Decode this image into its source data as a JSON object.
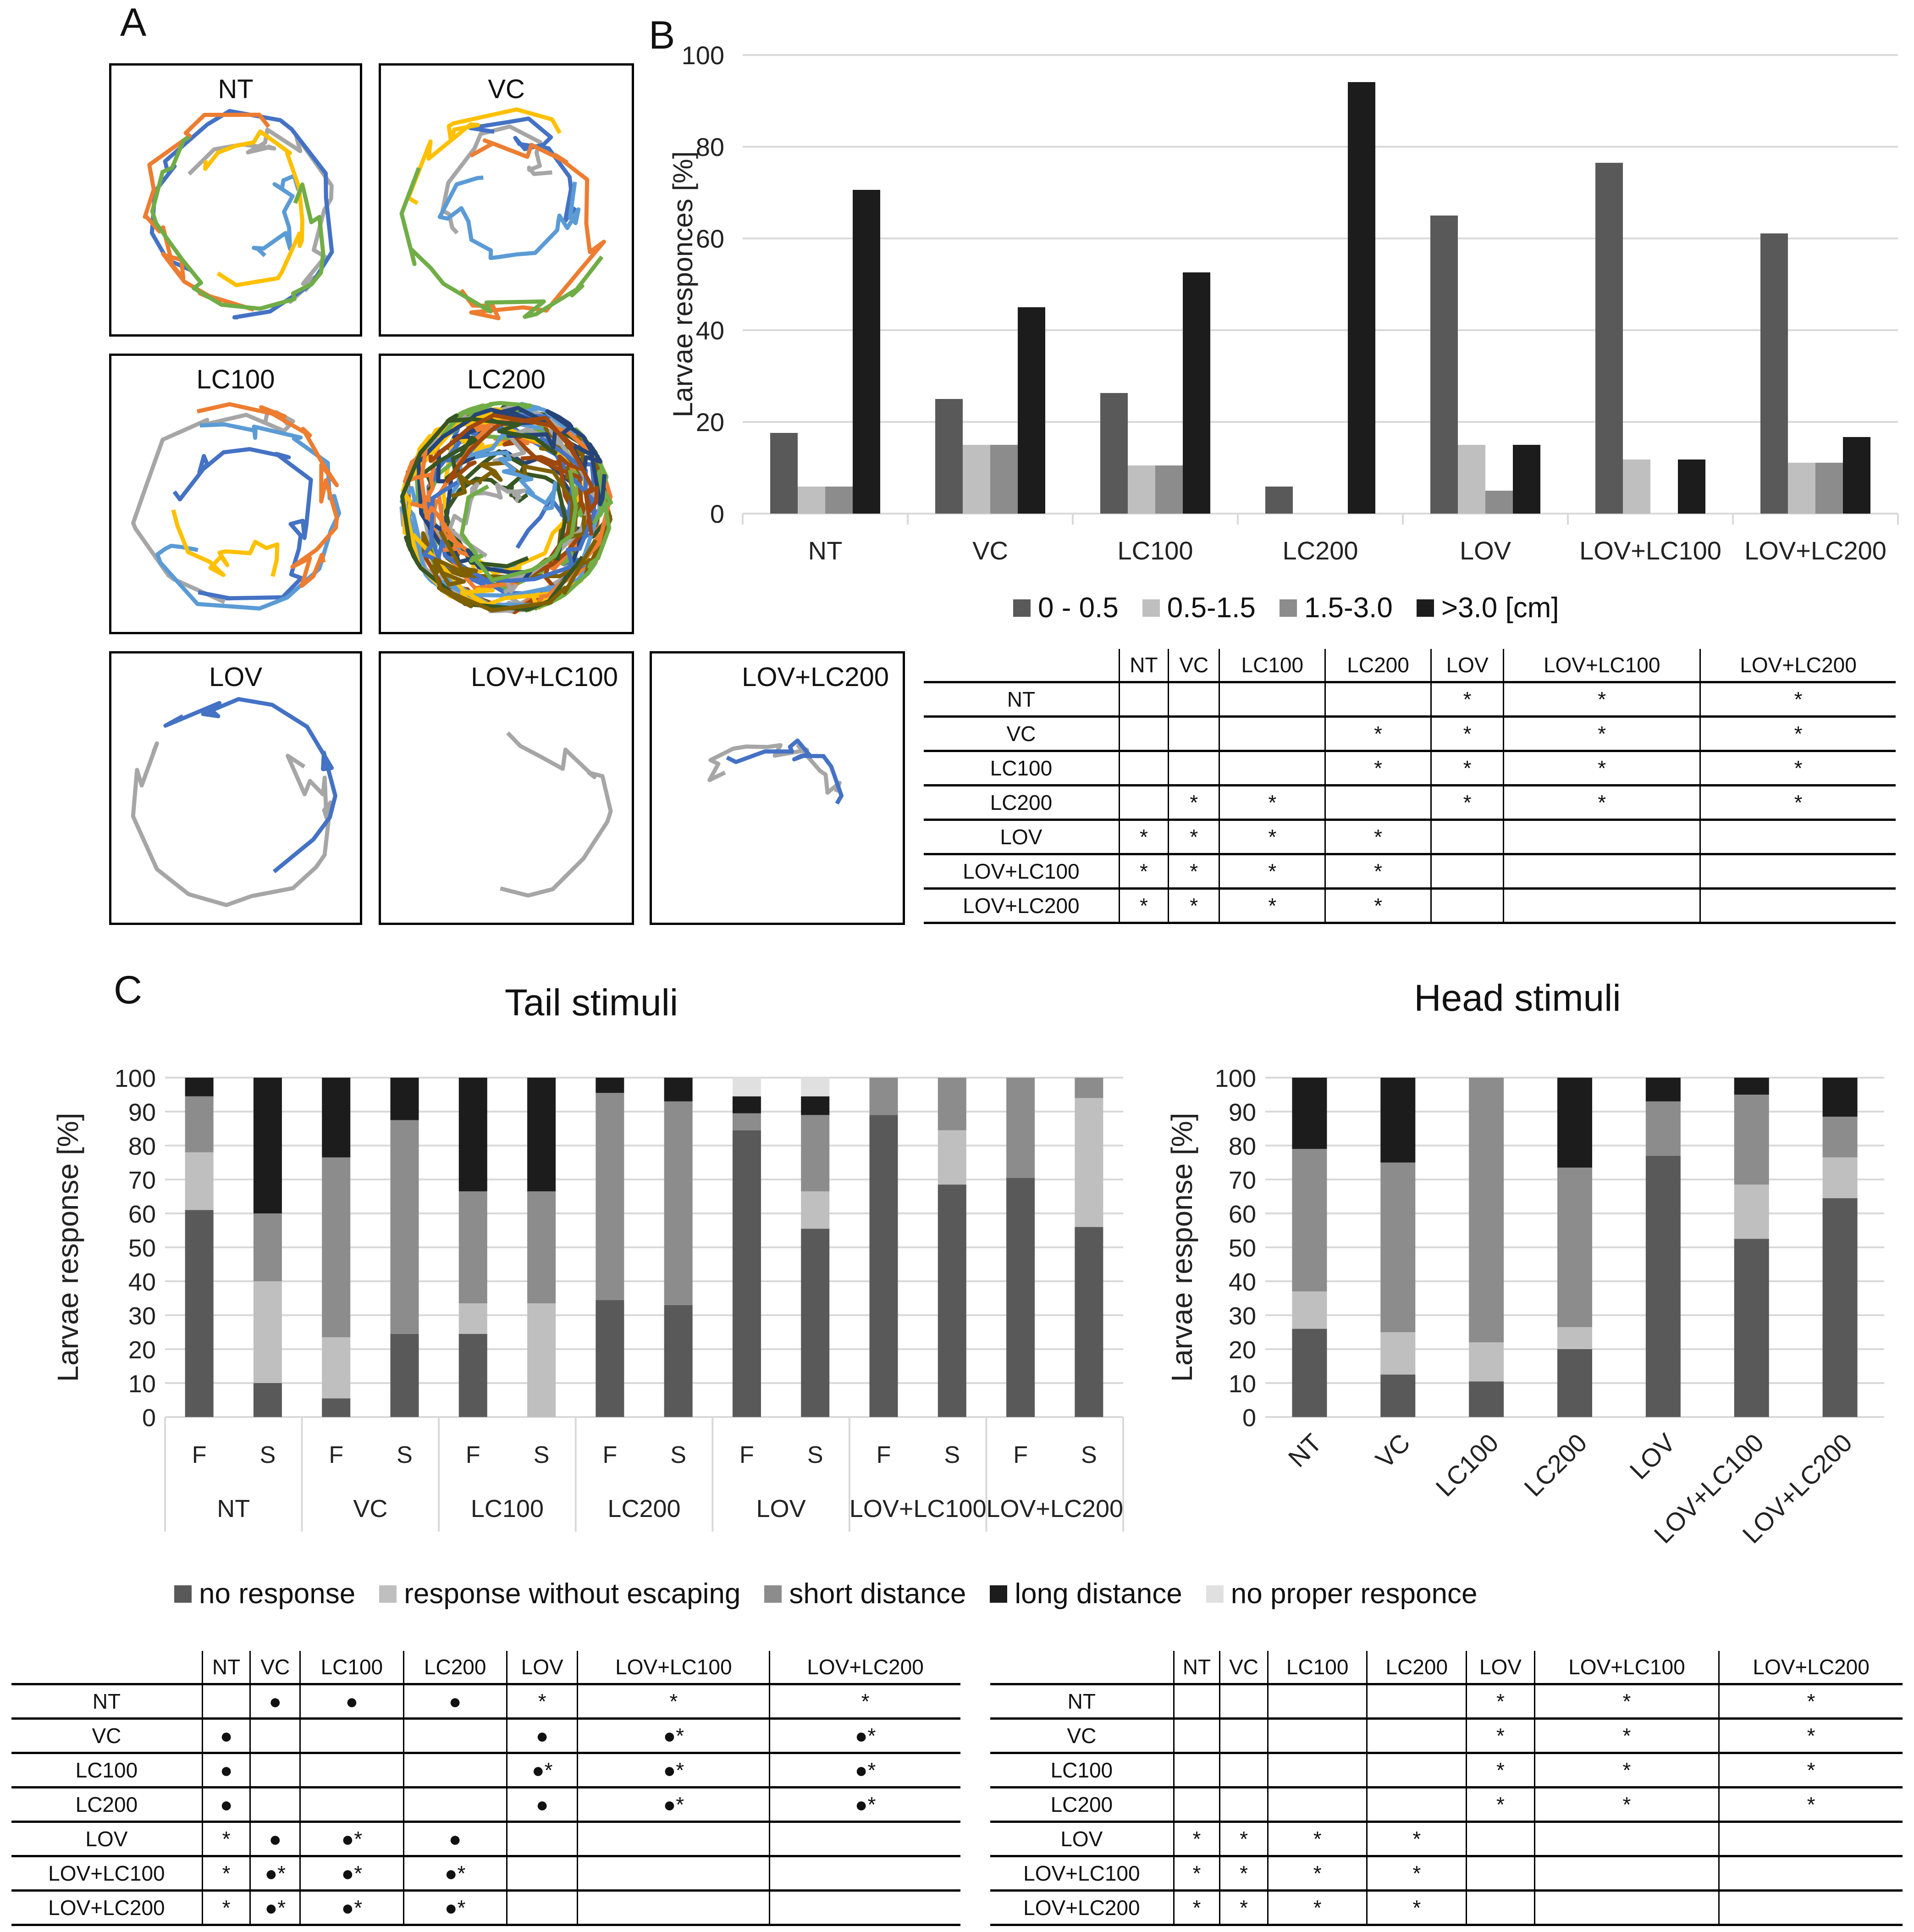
{
  "panels": {
    "a": "A",
    "b": "B",
    "c": "C"
  },
  "tracks": [
    {
      "label": "NT"
    },
    {
      "label": "VC"
    },
    {
      "label": "LC100"
    },
    {
      "label": "LC200"
    },
    {
      "label": "LOV"
    },
    {
      "label": "LOV+LC100"
    },
    {
      "label": "LOV+LC200"
    }
  ],
  "colors": {
    "dark": "#595959",
    "light": "#bfbfbf",
    "mid": "#8c8c8c",
    "black": "#1c1c1c",
    "pale": "#e0e0e0",
    "track_palette": [
      "#a6a6a6",
      "#4472c4",
      "#5b9bd5",
      "#ffc000",
      "#ed7d31",
      "#70ad47",
      "#264478",
      "#375623",
      "#9e480e",
      "#7f6000"
    ]
  },
  "chart_data": [
    {
      "type": "bar",
      "title": "",
      "xlabel": "",
      "ylabel": "Larvae responces [%]",
      "ylim": [
        0,
        100
      ],
      "yticks": [
        "0",
        "20",
        "40",
        "60",
        "80",
        "100"
      ],
      "categories": [
        "NT",
        "VC",
        "LC100",
        "LC200",
        "LOV",
        "LOV+LC100",
        "LOV+LC200"
      ],
      "series": [
        {
          "name": "0 - 0.5",
          "values": [
            17.6,
            25,
            26.3,
            5.9,
            65,
            76.5,
            61.1
          ]
        },
        {
          "name": "0.5-1.5",
          "values": [
            5.9,
            15,
            10.5,
            0,
            15,
            11.8,
            11.1
          ]
        },
        {
          "name": "1.5-3.0",
          "values": [
            5.9,
            15,
            10.5,
            0,
            5,
            0,
            11.1
          ]
        },
        {
          "name": ">3.0 [cm]",
          "values": [
            70.6,
            45,
            52.6,
            94.1,
            15,
            11.8,
            16.7
          ]
        }
      ],
      "grid": true,
      "legend": "bottom"
    },
    {
      "type": "bar",
      "stacked": true,
      "title": "Tail stimuli",
      "xlabel": "",
      "ylabel": "Larvae response [%]",
      "ylim": [
        0,
        100
      ],
      "yticks": [
        "0",
        "10",
        "20",
        "30",
        "40",
        "50",
        "60",
        "70",
        "80",
        "90",
        "100"
      ],
      "groups": [
        "NT",
        "VC",
        "LC100",
        "LC200",
        "LOV",
        "LOV+LC100",
        "LOV+LC200"
      ],
      "sub_categories": [
        "F",
        "S"
      ],
      "series": [
        {
          "name": "no response",
          "values": [
            61,
            10,
            5.5,
            24.5,
            24.5,
            0,
            34.5,
            33,
            84.5,
            55.5,
            89,
            68.5,
            70.5,
            56
          ]
        },
        {
          "name": "response without escaping",
          "values": [
            17,
            30,
            18,
            0,
            9,
            33.5,
            0,
            0,
            0,
            11,
            0,
            16,
            0,
            38
          ]
        },
        {
          "name": "short distance",
          "values": [
            16.5,
            20,
            53,
            63,
            33,
            33,
            61,
            60,
            5,
            22.5,
            11,
            15.5,
            29.5,
            6
          ]
        },
        {
          "name": "long distance",
          "values": [
            5.5,
            40,
            23.5,
            12.5,
            33.5,
            33.5,
            4.5,
            7,
            5,
            5.5,
            0,
            0,
            0,
            0
          ]
        },
        {
          "name": "no proper responce",
          "values": [
            0,
            0,
            0,
            0,
            0,
            0,
            0,
            0,
            5.5,
            5.5,
            0,
            0,
            0,
            0
          ]
        }
      ],
      "grid": true
    },
    {
      "type": "bar",
      "stacked": true,
      "title": "Head stimuli",
      "xlabel": "",
      "ylabel": "Larvae response [%]",
      "ylim": [
        0,
        100
      ],
      "yticks": [
        "0",
        "10",
        "20",
        "30",
        "40",
        "50",
        "60",
        "70",
        "80",
        "90",
        "100"
      ],
      "categories": [
        "NT",
        "VC",
        "LC100",
        "LC200",
        "LOV",
        "LOV+LC100",
        "LOV+LC200"
      ],
      "series": [
        {
          "name": "no response",
          "values": [
            26,
            12.5,
            10.5,
            20,
            77,
            52.5,
            64.5
          ]
        },
        {
          "name": "response without escaping",
          "values": [
            11,
            12.5,
            11.5,
            6.5,
            0,
            16,
            12
          ]
        },
        {
          "name": "short distance",
          "values": [
            42,
            50,
            78,
            47,
            16,
            26.5,
            12
          ]
        },
        {
          "name": "long distance",
          "values": [
            21,
            25,
            0,
            26.5,
            7,
            5,
            11.5
          ]
        }
      ],
      "grid": true
    }
  ],
  "legend_b": [
    "0 - 0.5",
    "0.5-1.5",
    "1.5-3.0",
    ">3.0 [cm]"
  ],
  "legend_c": [
    "no response",
    "response without escaping",
    "short distance",
    "long distance",
    "no proper responce"
  ],
  "tables": {
    "headers": [
      "NT",
      "VC",
      "LC100",
      "LC200",
      "LOV",
      "LOV+LC100",
      "LOV+LC200"
    ],
    "b": [
      [
        "",
        "",
        "",
        "",
        "*",
        "*",
        "*"
      ],
      [
        "",
        "",
        "",
        "*",
        "*",
        "*",
        "*"
      ],
      [
        "",
        "",
        "",
        "*",
        "*",
        "*",
        "*"
      ],
      [
        "",
        "*",
        "*",
        "",
        "*",
        "*",
        "*"
      ],
      [
        "*",
        "*",
        "*",
        "*",
        "",
        "",
        ""
      ],
      [
        "*",
        "*",
        "*",
        "*",
        "",
        "",
        ""
      ],
      [
        "*",
        "*",
        "*",
        "*",
        "",
        "",
        ""
      ]
    ],
    "c_tail": [
      [
        "",
        "●",
        "●",
        "●",
        "*",
        "*",
        "*"
      ],
      [
        "●",
        "",
        "",
        "",
        "●",
        "●*",
        "●*"
      ],
      [
        "●",
        "",
        "",
        "",
        "●*",
        "●*",
        "●*"
      ],
      [
        "●",
        "",
        "",
        "",
        "●",
        "●*",
        "●*"
      ],
      [
        "*",
        "●",
        "●*",
        "●",
        "",
        "",
        ""
      ],
      [
        "*",
        "●*",
        "●*",
        "●*",
        "",
        "",
        ""
      ],
      [
        "*",
        "●*",
        "●*",
        "●*",
        "",
        "",
        ""
      ]
    ],
    "c_head": [
      [
        "",
        "",
        "",
        "",
        "*",
        "*",
        "*"
      ],
      [
        "",
        "",
        "",
        "",
        "*",
        "*",
        "*"
      ],
      [
        "",
        "",
        "",
        "",
        "*",
        "*",
        "*"
      ],
      [
        "",
        "",
        "",
        "",
        "*",
        "*",
        "*"
      ],
      [
        "*",
        "*",
        "*",
        "*",
        "",
        "",
        ""
      ],
      [
        "*",
        "*",
        "*",
        "*",
        "",
        "",
        ""
      ],
      [
        "*",
        "*",
        "*",
        "*",
        "",
        "",
        ""
      ]
    ]
  }
}
